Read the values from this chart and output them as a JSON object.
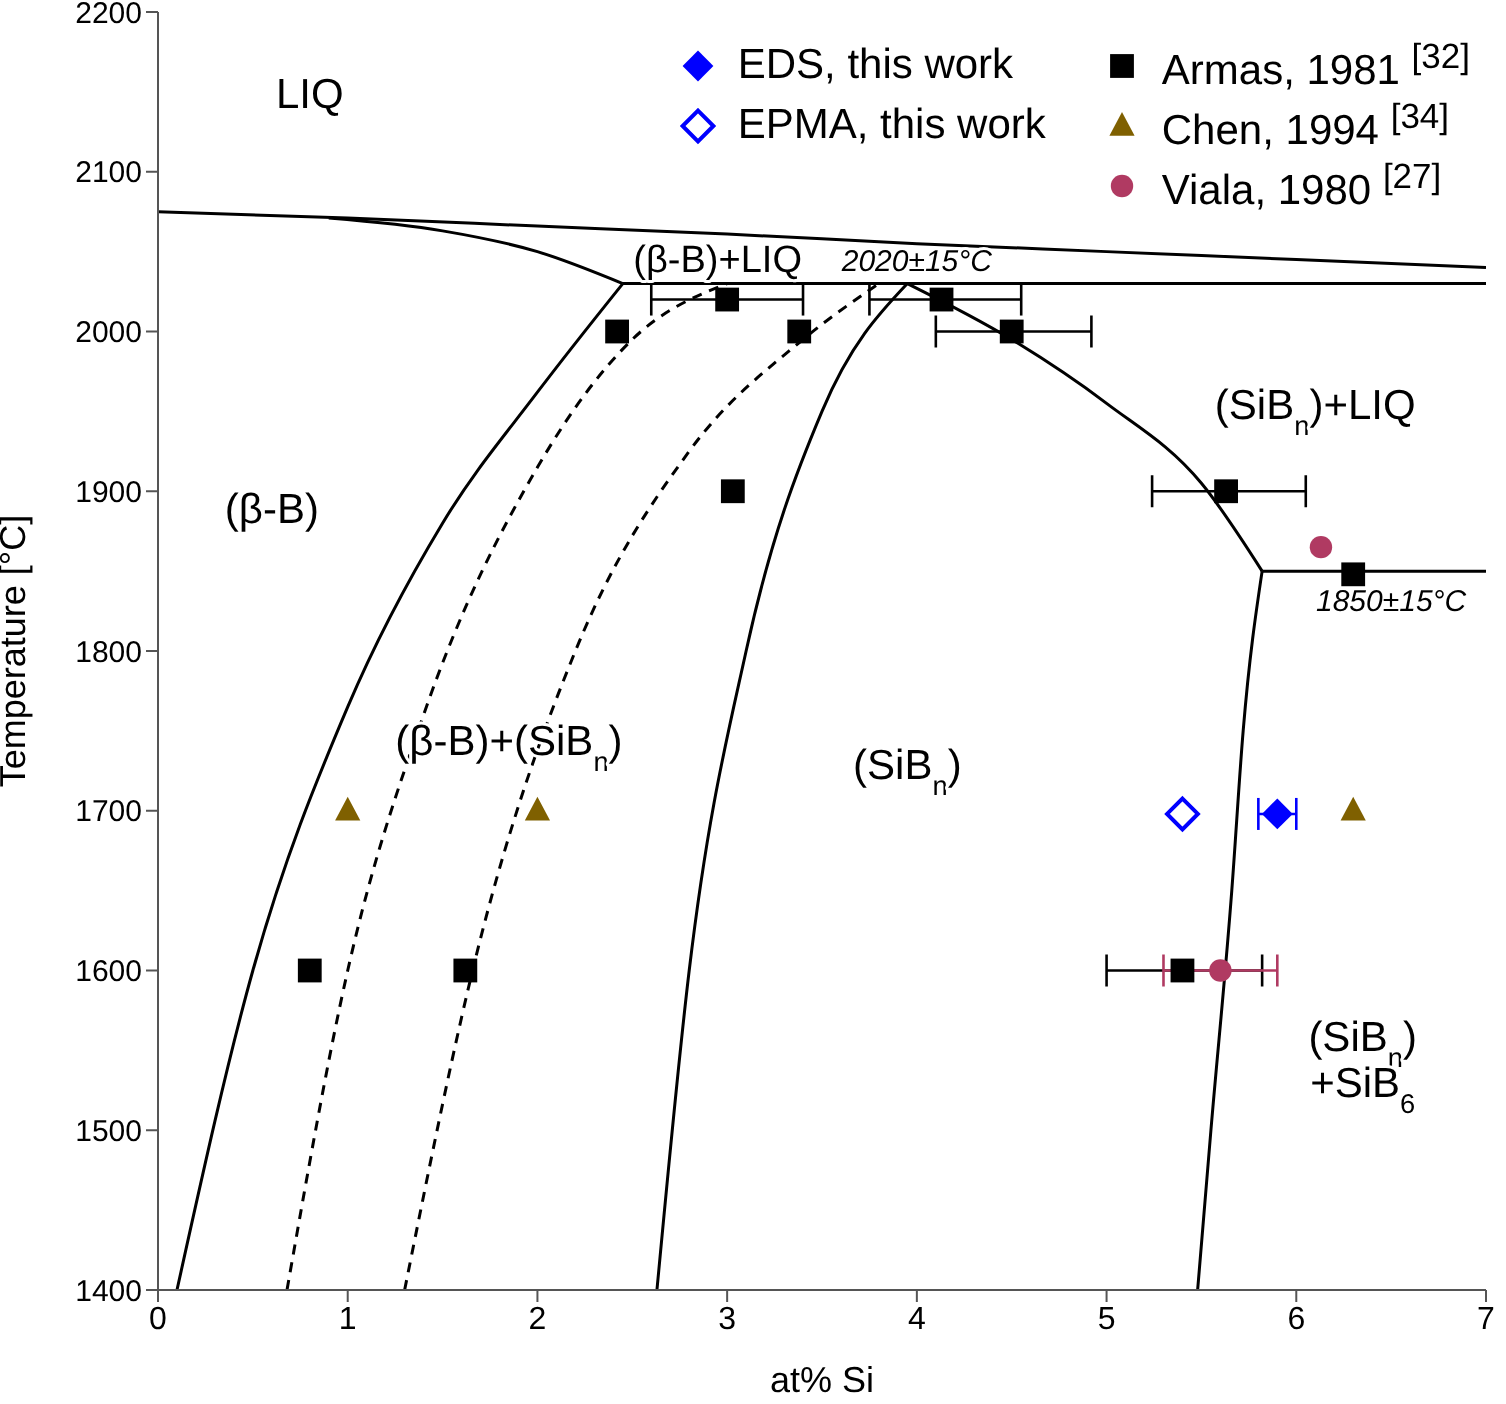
{
  "chart_data": {
    "type": "scatter",
    "xlabel": "at% Si",
    "ylabel": "Temperature [°C]",
    "xlim": [
      0,
      7
    ],
    "xticks": [
      0,
      1,
      2,
      3,
      4,
      5,
      6,
      7
    ],
    "ylim": [
      1400,
      2200
    ],
    "yticks": [
      1400,
      1500,
      1600,
      1700,
      1800,
      1900,
      2000,
      2100,
      2200
    ],
    "legend": "top right",
    "series": [
      {
        "name": "EDS, this work",
        "marker": "diamond",
        "color": "#0000ff",
        "x": [
          5.9
        ],
        "values": [
          1698
        ],
        "xerrors": [
          0.1
        ]
      },
      {
        "name": "EPMA, this work",
        "marker": "diamond",
        "color": "#0000ff",
        "x": [
          5.4
        ],
        "values": [
          1698
        ]
      },
      {
        "name": "Armas, 1981 $^{[32]}$",
        "marker": "square",
        "color": "#000000",
        "x": [
          2.42,
          3.0,
          3.38,
          4.13,
          4.5,
          3.03,
          5.63,
          6.3,
          0.8,
          1.62,
          5.4
        ],
        "values": [
          2000,
          2020,
          2000,
          2020,
          2000,
          1900,
          1900,
          1848,
          1600,
          1600,
          1600
        ],
        "xerrors": [
          null,
          [
            2.6,
            3.4
          ],
          null,
          [
            3.75,
            4.55
          ],
          [
            4.1,
            4.92
          ],
          null,
          [
            5.24,
            6.05
          ],
          null,
          null,
          null,
          [
            5.0,
            5.82
          ]
        ]
      },
      {
        "name": "Chen, 1994 $^{[34]}$",
        "marker": "triangle",
        "color": "#7f6000",
        "x": [
          1.0,
          2.0,
          6.3
        ],
        "values": [
          1700,
          1700,
          1700
        ]
      },
      {
        "name": "Viala, 1980 $^{[27]}$",
        "marker": "circle",
        "color": "#b03a62",
        "x": [
          6.13,
          5.6
        ],
        "values": [
          1865,
          1600
        ],
        "xerrors": [
          null,
          [
            5.3,
            5.9
          ]
        ]
      },
      {
        "type": "line",
        "color": "#000000",
        "line_style": "solid",
        "x": [
          0,
          1,
          2,
          3,
          4,
          5,
          6,
          7
        ],
        "values": [
          2075,
          2071,
          2066,
          2061,
          2055,
          2050,
          2045,
          2040
        ]
      },
      {
        "type": "line",
        "color": "#000000",
        "line_style": "solid",
        "x": [
          0.9,
          1.5,
          2.0,
          2.45
        ],
        "values": [
          2071,
          2063,
          2050,
          2030
        ]
      },
      {
        "type": "line",
        "color": "#000000",
        "line_style": "solid",
        "x": [
          2.45,
          7
        ],
        "values": [
          2030,
          2030
        ]
      },
      {
        "type": "line",
        "color": "#000000",
        "line_style": "solid",
        "x": [
          5.82,
          7
        ],
        "values": [
          1850,
          1850
        ]
      },
      {
        "type": "line",
        "color": "#000000",
        "line_style": "solid",
        "x": [
          0.1,
          0.5,
          1.0,
          1.5,
          2.0,
          2.45
        ],
        "values": [
          1400,
          1600,
          1765,
          1880,
          1962,
          2030
        ]
      },
      {
        "type": "line",
        "color": "#000000",
        "line_style": "dashed",
        "x": [
          0.68,
          1.0,
          1.4,
          2.0,
          2.5,
          3.0
        ],
        "values": [
          1400,
          1600,
          1760,
          1915,
          1995,
          2030
        ]
      },
      {
        "type": "line",
        "color": "#000000",
        "line_style": "dashed",
        "x": [
          1.3,
          1.7,
          2.2,
          2.8,
          3.4,
          3.8
        ],
        "values": [
          1400,
          1620,
          1800,
          1925,
          1995,
          2030
        ]
      },
      {
        "type": "line",
        "color": "#000000",
        "line_style": "solid",
        "x": [
          2.63,
          2.8,
          3.1,
          3.5,
          3.95
        ],
        "values": [
          1400,
          1600,
          1800,
          1950,
          2030
        ]
      },
      {
        "type": "line",
        "color": "#000000",
        "line_style": "solid",
        "x": [
          3.95,
          4.5,
          5.0,
          5.5,
          5.82
        ],
        "values": [
          2030,
          1995,
          1955,
          1905,
          1850
        ]
      },
      {
        "type": "line",
        "color": "#000000",
        "line_style": "solid",
        "x": [
          5.48,
          5.55,
          5.66,
          5.72,
          5.82
        ],
        "values": [
          1400,
          1500,
          1650,
          1750,
          1850
        ]
      }
    ],
    "annotations": [
      "LIQ",
      "(β-B)+LIQ",
      "2020±15°C",
      "(β-B)",
      "(SiB$_{n}$)+LIQ",
      "1850±15°C",
      "(β-B)+(SiB$_{n}$)",
      "(SiB$_{n}$)",
      "(SiB$_{n}$)\n+SiB$_{6}$"
    ]
  }
}
